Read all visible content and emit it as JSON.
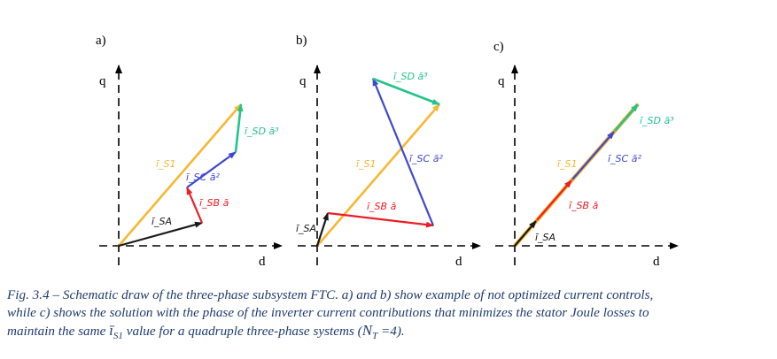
{
  "panels": [
    {
      "label": "a)",
      "q": "q",
      "d": "d",
      "vectors": {
        "isa": "ī_SA",
        "isb": "ī_SB ā",
        "isc": "ī_SC ā²",
        "isd": "ī_SD ā³",
        "is1": "ī_S1"
      }
    },
    {
      "label": "b)",
      "q": "q",
      "d": "d",
      "vectors": {
        "isa": "ī_SA",
        "isb": "ī_SB ā",
        "isc": "ī_SC ā²",
        "isd": "ī_SD ā³",
        "is1": "ī_S1"
      }
    },
    {
      "label": "c)",
      "q": "q",
      "d": "d",
      "vectors": {
        "isa": "ī_SA",
        "isb": "ī_SB ā",
        "isc": "ī_SC ā²",
        "isd": "ī_SD ā³",
        "is1": "ī_S1"
      }
    }
  ],
  "caption": {
    "line1": "Fig. 3.4 – Schematic draw of the three-phase subsystem FTC. a) and b) show example of not optimized current controls,",
    "line2": "while c) shows the solution with the phase of the inverter current contributions that minimizes the stator Joule losses to",
    "line3_pre": "maintain the same ",
    "line3_sym": "ī",
    "line3_sub": "S1",
    "line3_mid": " value for a quadruple three-phase systems (",
    "line3_n": "N",
    "line3_nsub": "T",
    "line3_post": " =4)."
  },
  "colors": {
    "isa": "#1a1a1a",
    "isb": "#ee1c25",
    "isc": "#3f48cc",
    "isd": "#22c48a",
    "is1": "#f7b731",
    "caption": "#1f3c6e"
  }
}
